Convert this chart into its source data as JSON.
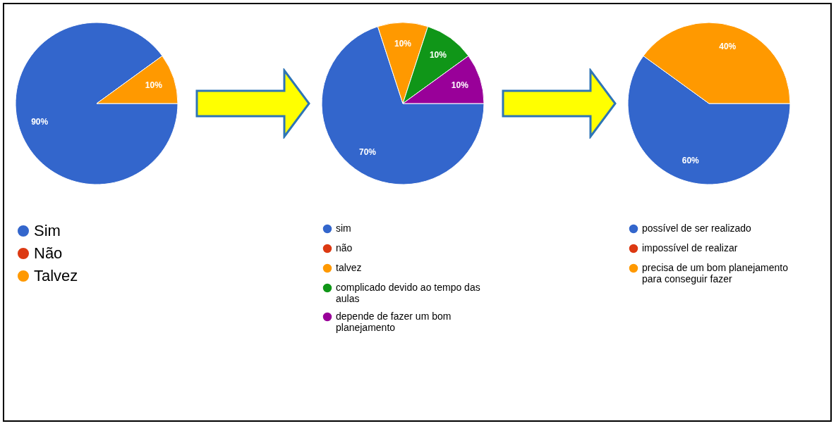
{
  "chart_data": [
    {
      "type": "pie",
      "categories": [
        "Sim",
        "Não",
        "Talvez"
      ],
      "values": [
        90,
        0,
        10
      ],
      "colors": [
        "#3366cc",
        "#dc3912",
        "#ff9900"
      ],
      "value_labels": [
        "90%",
        null,
        "10%"
      ],
      "legend": "bottom"
    },
    {
      "type": "pie",
      "categories": [
        "sim",
        "não",
        "talvez",
        "complicado devido ao tempo das aulas",
        "depende de fazer um bom planejamento"
      ],
      "values": [
        70,
        0,
        10,
        10,
        10
      ],
      "colors": [
        "#3366cc",
        "#dc3912",
        "#ff9900",
        "#109618",
        "#990099"
      ],
      "value_labels": [
        "70%",
        null,
        "10%",
        "10%",
        "10%"
      ],
      "legend": "bottom"
    },
    {
      "type": "pie",
      "categories": [
        "possível de ser realizado",
        "impossível de realizar",
        "precisa de um bom planejamento para conseguir fazer"
      ],
      "values": [
        60,
        0,
        40
      ],
      "colors": [
        "#3366cc",
        "#dc3912",
        "#ff9900"
      ],
      "value_labels": [
        "60%",
        null,
        "40%"
      ],
      "legend": "bottom"
    }
  ]
}
